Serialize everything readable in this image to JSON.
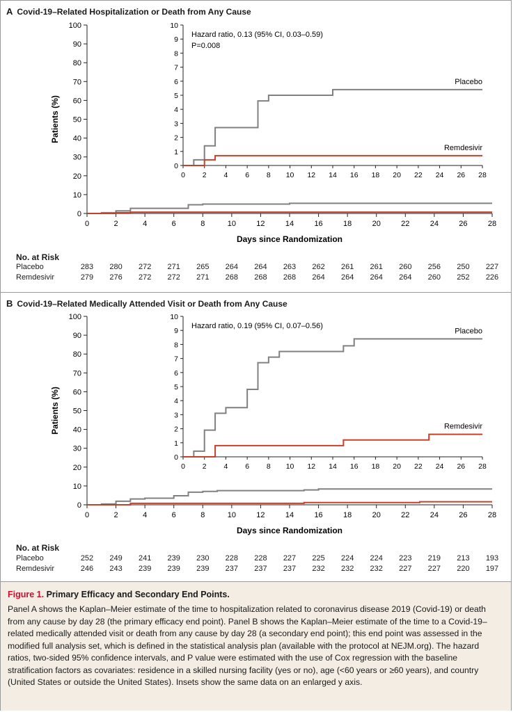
{
  "panelA": {
    "letter": "A",
    "title": "Covid-19–Related Hospitalization or Death from Any Cause",
    "hazard": "Hazard ratio, 0.13 (95% CI, 0.03–0.59)",
    "pvalue": "P=0.008",
    "risk_header": "No. at Risk",
    "risk_rows": [
      {
        "label": "Placebo",
        "values": [
          "283",
          "280",
          "272",
          "271",
          "265",
          "264",
          "264",
          "263",
          "262",
          "261",
          "261",
          "260",
          "256",
          "250",
          "227"
        ]
      },
      {
        "label": "Remdesivir",
        "values": [
          "279",
          "276",
          "272",
          "272",
          "271",
          "268",
          "268",
          "268",
          "264",
          "264",
          "264",
          "264",
          "260",
          "252",
          "226"
        ]
      }
    ]
  },
  "panelB": {
    "letter": "B",
    "title": "Covid-19–Related Medically Attended Visit or Death from Any Cause",
    "hazard": "Hazard ratio, 0.19 (95% CI, 0.07–0.56)",
    "risk_header": "No. at Risk",
    "risk_rows": [
      {
        "label": "Placebo",
        "values": [
          "252",
          "249",
          "241",
          "239",
          "230",
          "228",
          "228",
          "227",
          "225",
          "224",
          "224",
          "223",
          "219",
          "213",
          "193"
        ]
      },
      {
        "label": "Remdesivir",
        "values": [
          "246",
          "243",
          "239",
          "239",
          "239",
          "237",
          "237",
          "237",
          "232",
          "232",
          "232",
          "227",
          "227",
          "220",
          "197"
        ]
      }
    ]
  },
  "colors": {
    "placebo": "#808080",
    "remdesivir": "#c8402a",
    "caption_bg": "#f3ede3",
    "figure_label": "#c8102e"
  },
  "caption": {
    "label": "Figure 1.",
    "title": "Primary Efficacy and Secondary End Points.",
    "body": "Panel A shows the Kaplan–Meier estimate of the time to hospitalization related to coronavirus disease 2019 (Covid-19) or death from any cause by day 28 (the primary efficacy end point). Panel B shows the Kaplan–Meier estimate of the time to a Covid-19–related medically attended visit or death from any cause by day 28 (a secondary end point); this end point was assessed in the modified full analysis set, which is defined in the statistical analysis plan (available with the protocol at NEJM.org). The hazard ratios, two-sided 95% confidence intervals, and P value were estimated with the use of Cox regression with the baseline stratification factors as covariates: residence in a skilled nursing facility (yes or no), age (<60 years or ≥60 years), and country (United States or outside the United States). Insets show the same data on an enlarged y axis."
  },
  "chart_data": [
    {
      "type": "line",
      "panel": "A",
      "xlabel": "Days since Randomization",
      "ylabel": "Patients (%)",
      "xlim": [
        0,
        28
      ],
      "ylim": [
        0,
        100
      ],
      "xticks": [
        "0",
        "2",
        "4",
        "6",
        "8",
        "10",
        "12",
        "14",
        "16",
        "18",
        "20",
        "22",
        "24",
        "26",
        "28"
      ],
      "yticks": [
        "0",
        "10",
        "20",
        "30",
        "40",
        "50",
        "60",
        "70",
        "80",
        "90",
        "100"
      ],
      "inset": {
        "xlim": [
          0,
          28
        ],
        "ylim": [
          0,
          10
        ],
        "xticks": [
          "0",
          "2",
          "4",
          "6",
          "8",
          "10",
          "12",
          "14",
          "16",
          "18",
          "20",
          "22",
          "24",
          "26",
          "28"
        ],
        "yticks": [
          "0",
          "1",
          "2",
          "3",
          "4",
          "5",
          "6",
          "7",
          "8",
          "9",
          "10"
        ]
      },
      "series": [
        {
          "name": "Placebo",
          "x": [
            0,
            1,
            2,
            3,
            7,
            8,
            14,
            28
          ],
          "y": [
            0,
            0.4,
            1.4,
            2.7,
            4.6,
            5.0,
            5.4,
            5.4
          ]
        },
        {
          "name": "Remdesivir",
          "x": [
            0,
            2,
            3,
            28
          ],
          "y": [
            0,
            0.4,
            0.7,
            0.7
          ]
        }
      ]
    },
    {
      "type": "line",
      "panel": "B",
      "xlabel": "Days since Randomization",
      "ylabel": "Patients (%)",
      "xlim": [
        0,
        28
      ],
      "ylim": [
        0,
        100
      ],
      "xticks": [
        "0",
        "2",
        "4",
        "6",
        "8",
        "10",
        "12",
        "14",
        "16",
        "18",
        "20",
        "22",
        "24",
        "26",
        "28"
      ],
      "yticks": [
        "0",
        "10",
        "20",
        "30",
        "40",
        "50",
        "60",
        "70",
        "80",
        "90",
        "100"
      ],
      "inset": {
        "xlim": [
          0,
          28
        ],
        "ylim": [
          0,
          10
        ],
        "xticks": [
          "0",
          "2",
          "4",
          "6",
          "8",
          "10",
          "12",
          "14",
          "16",
          "18",
          "20",
          "22",
          "24",
          "26",
          "28"
        ],
        "yticks": [
          "0",
          "1",
          "2",
          "3",
          "4",
          "5",
          "6",
          "7",
          "8",
          "9",
          "10"
        ]
      },
      "series": [
        {
          "name": "Placebo",
          "x": [
            0,
            1,
            2,
            3,
            4,
            6,
            7,
            8,
            9,
            15,
            16,
            28
          ],
          "y": [
            0,
            0.4,
            1.9,
            3.1,
            3.5,
            4.8,
            6.7,
            7.1,
            7.5,
            7.9,
            8.4,
            8.4
          ]
        },
        {
          "name": "Remdesivir",
          "x": [
            0,
            3,
            15,
            23,
            28
          ],
          "y": [
            0,
            0.8,
            1.2,
            1.6,
            1.6
          ]
        }
      ]
    }
  ]
}
